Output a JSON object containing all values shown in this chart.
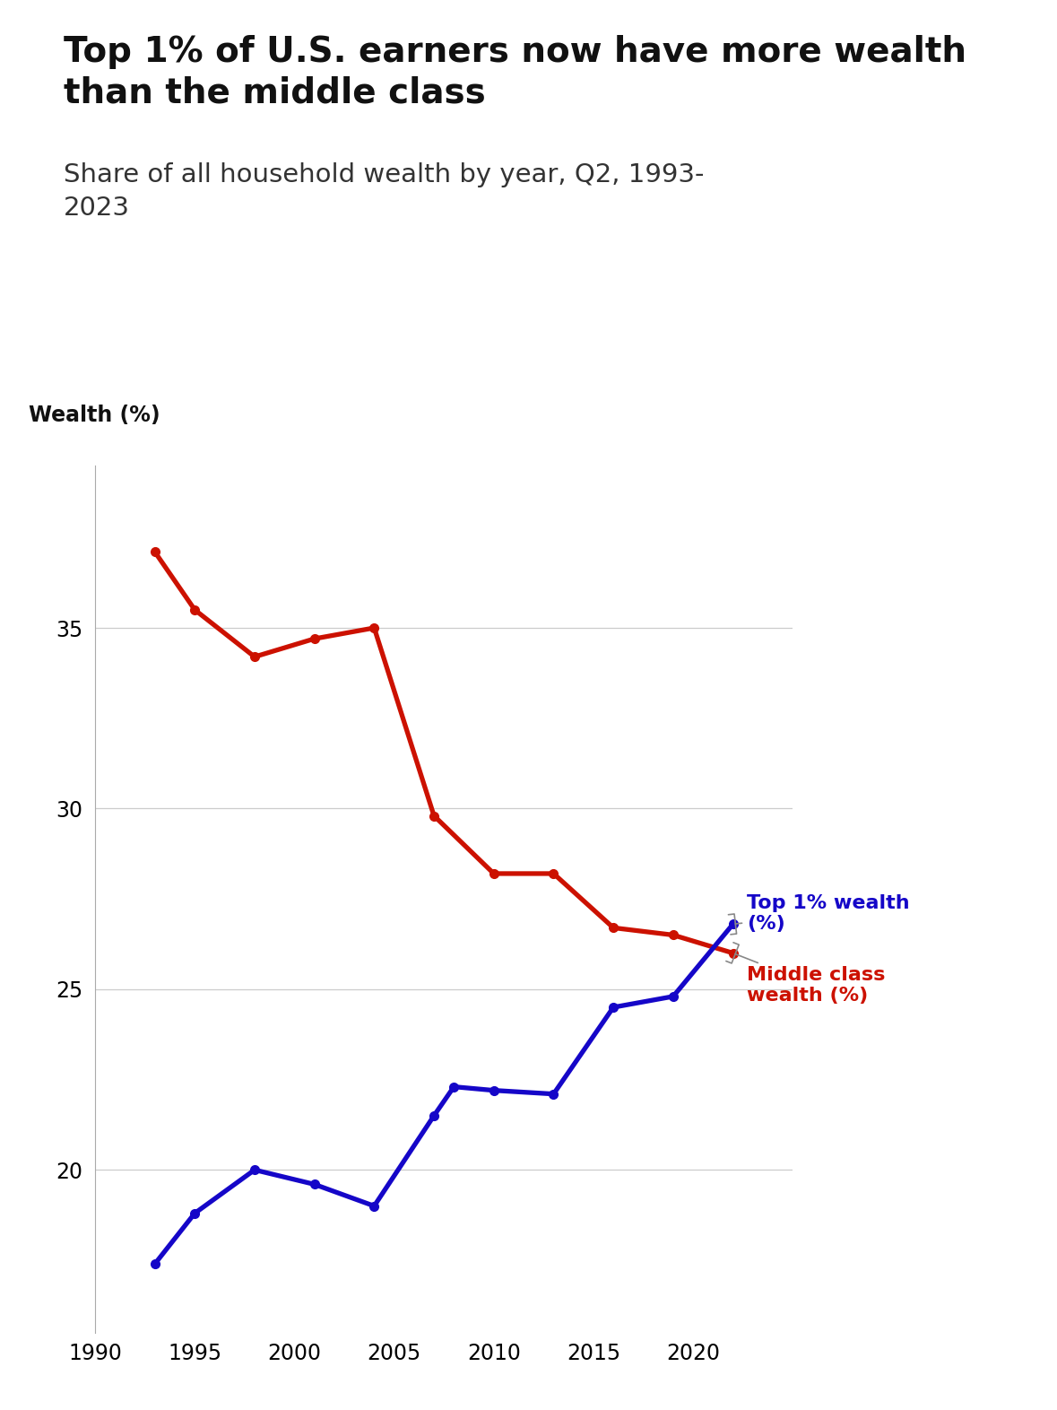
{
  "title": "Top 1% of U.S. earners now have more wealth\nthan the middle class",
  "subtitle": "Share of all household wealth by year, Q2, 1993-\n2023",
  "ylabel": "Wealth (%)",
  "background_color": "#ffffff",
  "title_fontsize": 28,
  "subtitle_fontsize": 21,
  "ylabel_fontsize": 17,
  "tick_fontsize": 17,
  "top1_color": "#1506c8",
  "middle_color": "#cc1100",
  "top1_label": "Top 1% wealth\n(%)",
  "middle_label": "Middle class\nwealth (%)",
  "top1_years": [
    1993,
    1995,
    1998,
    2001,
    2004,
    2007,
    2008,
    2010,
    2013,
    2016,
    2019,
    2022
  ],
  "top1_values": [
    17.4,
    18.8,
    20.0,
    19.6,
    19.0,
    21.5,
    22.3,
    22.2,
    22.1,
    24.5,
    24.8,
    26.8
  ],
  "middle_years": [
    1993,
    1995,
    1998,
    2001,
    2004,
    2007,
    2010,
    2013,
    2016,
    2019,
    2022
  ],
  "middle_values": [
    37.1,
    35.5,
    34.2,
    34.7,
    35.0,
    29.8,
    28.2,
    28.2,
    26.7,
    26.5,
    26.0
  ],
  "xlim": [
    1990,
    2025
  ],
  "ylim": [
    15.5,
    39.5
  ],
  "xticks": [
    1990,
    1995,
    2000,
    2005,
    2010,
    2015,
    2020
  ],
  "yticks": [
    20,
    25,
    30,
    35
  ],
  "line_width": 3.8,
  "marker_size": 7
}
